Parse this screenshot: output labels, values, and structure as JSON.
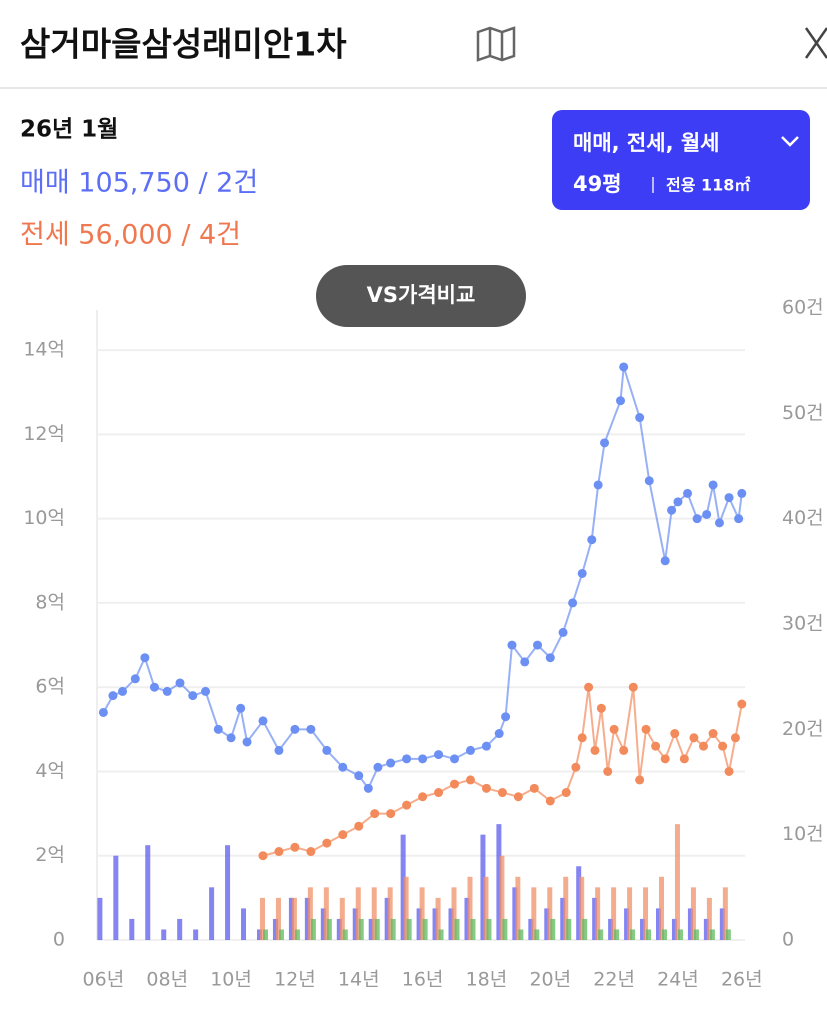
{
  "header": {
    "title": "삼거마을삼성래미안1차"
  },
  "info": {
    "date": "26년 1월",
    "sale": "매매 105,750 / 2건",
    "jeonse": "전세 56,000 / 4건"
  },
  "filter": {
    "types": "매매, 전세, 월세",
    "size": "49평",
    "area": "전용 118㎡"
  },
  "compare_button": "VS가격비교",
  "chart_data": {
    "type": "line",
    "xlim": [
      2005.8,
      2026.1
    ],
    "xticks": [
      {
        "value": 2006,
        "label": "06년"
      },
      {
        "value": 2008,
        "label": "08년"
      },
      {
        "value": 2010,
        "label": "10년"
      },
      {
        "value": 2012,
        "label": "12년"
      },
      {
        "value": 2014,
        "label": "14년"
      },
      {
        "value": 2016,
        "label": "16년"
      },
      {
        "value": 2018,
        "label": "18년"
      },
      {
        "value": 2020,
        "label": "20년"
      },
      {
        "value": 2022,
        "label": "22년"
      },
      {
        "value": 2024,
        "label": "24년"
      },
      {
        "value": 2026,
        "label": "26년"
      }
    ],
    "ylim": [
      0,
      15
    ],
    "yticks": [
      0,
      {
        "value": 2,
        "label": "2억"
      },
      {
        "value": 4,
        "label": "4억"
      },
      {
        "value": 6,
        "label": "6억"
      },
      {
        "value": 8,
        "label": "8억"
      },
      {
        "value": 10,
        "label": "10억"
      },
      {
        "value": 12,
        "label": "12억"
      },
      {
        "value": 14,
        "label": "14억"
      }
    ],
    "y2lim": [
      0,
      60
    ],
    "y2ticks": [
      0,
      {
        "value": 10,
        "label": "10건"
      },
      {
        "value": 20,
        "label": "20건"
      },
      {
        "value": 30,
        "label": "30건"
      },
      {
        "value": 40,
        "label": "40건"
      },
      {
        "value": 50,
        "label": "50건"
      },
      {
        "value": 60,
        "label": "60건"
      }
    ],
    "grid": true,
    "series": [
      {
        "kind": "line",
        "color": "#6b8ff2",
        "x": [
          2006.0,
          2006.3,
          2006.6,
          2007.0,
          2007.3,
          2007.6,
          2008.0,
          2008.4,
          2008.8,
          2009.2,
          2009.6,
          2010.0,
          2010.3,
          2010.5,
          2011.0,
          2011.5,
          2012.0,
          2012.5,
          2013.0,
          2013.5,
          2014.0,
          2014.3,
          2014.6,
          2015.0,
          2015.5,
          2016.0,
          2016.5,
          2017.0,
          2017.5,
          2018.0,
          2018.4,
          2018.6,
          2018.8,
          2019.2,
          2019.6,
          2020.0,
          2020.4,
          2020.7,
          2021.0,
          2021.3,
          2021.5,
          2021.7,
          2022.2,
          2022.3,
          2022.8,
          2023.1,
          2023.6,
          2023.8,
          2024.0,
          2024.3,
          2024.6,
          2024.9,
          2025.1,
          2025.3,
          2025.6,
          2025.9,
          2026.0
        ],
        "values": [
          5.4,
          5.8,
          5.9,
          6.2,
          6.7,
          6.0,
          5.9,
          6.1,
          5.8,
          5.9,
          5.0,
          4.8,
          5.5,
          4.7,
          5.2,
          4.5,
          5.0,
          5.0,
          4.5,
          4.1,
          3.9,
          3.6,
          4.1,
          4.2,
          4.3,
          4.3,
          4.4,
          4.3,
          4.5,
          4.6,
          4.9,
          5.3,
          7.0,
          6.6,
          7.0,
          6.7,
          7.3,
          8.0,
          8.7,
          9.5,
          10.8,
          11.8,
          12.8,
          13.6,
          12.4,
          10.9,
          9.0,
          10.2,
          10.4,
          10.6,
          10.0,
          10.1,
          10.8,
          9.9,
          10.5,
          10.0,
          10.6
        ]
      },
      {
        "kind": "line",
        "color": "#f28a5c",
        "x": [
          2011.0,
          2011.5,
          2012.0,
          2012.5,
          2013.0,
          2013.5,
          2014.0,
          2014.5,
          2015.0,
          2015.5,
          2016.0,
          2016.5,
          2017.0,
          2017.5,
          2018.0,
          2018.5,
          2019.0,
          2019.5,
          2020.0,
          2020.5,
          2020.8,
          2021.0,
          2021.2,
          2021.4,
          2021.6,
          2021.8,
          2022.0,
          2022.3,
          2022.6,
          2022.8,
          2023.0,
          2023.3,
          2023.6,
          2023.9,
          2024.2,
          2024.5,
          2024.8,
          2025.1,
          2025.4,
          2025.6,
          2025.8,
          2026.0
        ],
        "values": [
          2.0,
          2.1,
          2.2,
          2.1,
          2.3,
          2.5,
          2.7,
          3.0,
          3.0,
          3.2,
          3.4,
          3.5,
          3.7,
          3.8,
          3.6,
          3.5,
          3.4,
          3.6,
          3.3,
          3.5,
          4.1,
          4.8,
          6.0,
          4.5,
          5.5,
          4.0,
          5.0,
          4.5,
          6.0,
          3.8,
          5.0,
          4.6,
          4.3,
          4.9,
          4.3,
          4.8,
          4.6,
          4.9,
          4.6,
          4.0,
          4.8,
          5.6
        ]
      },
      {
        "kind": "bar",
        "axis": "y2",
        "color": "#5b5bef",
        "x": [
          2006.0,
          2006.5,
          2007.0,
          2007.5,
          2008.0,
          2008.5,
          2009.0,
          2009.5,
          2010.0,
          2010.5,
          2011.0,
          2011.5,
          2012.0,
          2012.5,
          2013.0,
          2013.5,
          2014.0,
          2014.5,
          2015.0,
          2015.5,
          2016.0,
          2016.5,
          2017.0,
          2017.5,
          2018.0,
          2018.5,
          2019.0,
          2019.5,
          2020.0,
          2020.5,
          2021.0,
          2021.5,
          2022.0,
          2022.5,
          2023.0,
          2023.5,
          2024.0,
          2024.5,
          2025.0,
          2025.5
        ],
        "values": [
          4,
          8,
          2,
          9,
          1,
          2,
          1,
          5,
          9,
          3,
          1,
          2,
          4,
          4,
          3,
          2,
          3,
          2,
          4,
          10,
          3,
          3,
          3,
          4,
          10,
          11,
          5,
          2,
          3,
          4,
          7,
          4,
          2,
          3,
          2,
          3,
          2,
          3,
          2,
          3
        ]
      },
      {
        "kind": "bar",
        "axis": "y2",
        "color": "#f0906a",
        "x": [
          2011.0,
          2011.5,
          2012.0,
          2012.5,
          2013.0,
          2013.5,
          2014.0,
          2014.5,
          2015.0,
          2015.5,
          2016.0,
          2016.5,
          2017.0,
          2017.5,
          2018.0,
          2018.5,
          2019.0,
          2019.5,
          2020.0,
          2020.5,
          2021.0,
          2021.5,
          2022.0,
          2022.5,
          2023.0,
          2023.5,
          2024.0,
          2024.5,
          2025.0,
          2025.5
        ],
        "values": [
          4,
          4,
          4,
          5,
          5,
          4,
          5,
          5,
          5,
          6,
          5,
          4,
          5,
          6,
          6,
          8,
          6,
          5,
          5,
          6,
          6,
          5,
          5,
          5,
          5,
          6,
          11,
          5,
          4,
          5
        ]
      },
      {
        "kind": "bar",
        "axis": "y2",
        "color": "#5cb85c",
        "x": [
          2011.0,
          2011.5,
          2012.0,
          2012.5,
          2013.0,
          2013.5,
          2014.0,
          2014.5,
          2015.0,
          2015.5,
          2016.0,
          2016.5,
          2017.0,
          2017.5,
          2018.0,
          2018.5,
          2019.0,
          2019.5,
          2020.0,
          2020.5,
          2021.0,
          2021.5,
          2022.0,
          2022.5,
          2023.0,
          2023.5,
          2024.0,
          2024.5,
          2025.0,
          2025.5
        ],
        "values": [
          1,
          1,
          1,
          2,
          2,
          1,
          2,
          2,
          2,
          2,
          2,
          1,
          2,
          2,
          2,
          2,
          1,
          1,
          2,
          2,
          2,
          1,
          1,
          1,
          1,
          1,
          1,
          1,
          1,
          1
        ]
      }
    ]
  }
}
